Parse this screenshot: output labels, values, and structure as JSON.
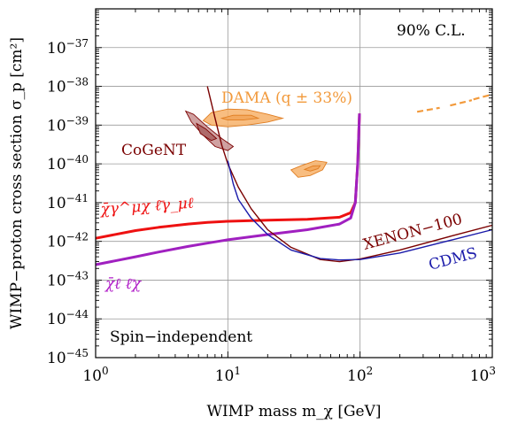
{
  "chart_data": {
    "type": "line",
    "xlabel": "WIMP mass m_χ [GeV]",
    "ylabel": "WIMP−proton cross section σ_p [cm²]",
    "x_scale": "log",
    "y_scale": "log",
    "xlim": [
      1,
      1000
    ],
    "ylim": [
      1e-45,
      1e-36
    ],
    "grid": true,
    "x_ticks": [
      {
        "value": 1,
        "base": "10",
        "exp": "0"
      },
      {
        "value": 10,
        "base": "10",
        "exp": "1"
      },
      {
        "value": 100,
        "base": "10",
        "exp": "2"
      },
      {
        "value": 1000,
        "base": "10",
        "exp": "3"
      }
    ],
    "y_ticks": [
      {
        "value": 1e-45,
        "base": "10",
        "exp": "−45"
      },
      {
        "value": 1e-44,
        "base": "10",
        "exp": "−44"
      },
      {
        "value": 1e-43,
        "base": "10",
        "exp": "−43"
      },
      {
        "value": 1e-42,
        "base": "10",
        "exp": "−42"
      },
      {
        "value": 1e-41,
        "base": "10",
        "exp": "−41"
      },
      {
        "value": 1e-40,
        "base": "10",
        "exp": "−40"
      },
      {
        "value": 1e-39,
        "base": "10",
        "exp": "−39"
      },
      {
        "value": 1e-38,
        "base": "10",
        "exp": "−38"
      },
      {
        "value": 1e-37,
        "base": "10",
        "exp": "−37"
      }
    ],
    "annotations": {
      "cl": "90% C.L.",
      "spin": "Spin−independent",
      "dama": "DAMA (q ± 33%)",
      "cogent": "CoGeNT",
      "xenon": "XENON−100",
      "cdms": "CDMS",
      "vector_op": "χ̄γ^μχ ℓ̄γ_μℓ",
      "scalar_op": "χ̄ℓ ℓ̄χ"
    },
    "series": [
      {
        "key": "vector",
        "color": "#ee1111",
        "x": [
          1,
          2,
          3,
          5,
          7,
          10,
          20,
          40,
          70,
          85,
          92,
          96,
          99
        ],
        "y": [
          1.2e-42,
          1.9e-42,
          2.3e-42,
          2.8e-42,
          3.1e-42,
          3.3e-42,
          3.5e-42,
          3.7e-42,
          4.2e-42,
          5.5e-42,
          1e-41,
          1e-40,
          2e-39
        ]
      },
      {
        "key": "scalar",
        "color": "#a020c0",
        "x": [
          1,
          2,
          3,
          5,
          7,
          10,
          20,
          40,
          70,
          85,
          92,
          96,
          99
        ],
        "y": [
          2.5e-43,
          4e-43,
          5.3e-43,
          7.4e-43,
          9e-43,
          1.1e-42,
          1.5e-42,
          2e-42,
          2.8e-42,
          4e-42,
          1e-41,
          1e-40,
          2e-39
        ]
      },
      {
        "key": "xenon100",
        "color": "#7a0000",
        "x": [
          7,
          8,
          9,
          10,
          12,
          15,
          20,
          30,
          50,
          70,
          100,
          200,
          500,
          1000
        ],
        "y": [
          1e-38,
          1.5e-39,
          3e-40,
          1e-40,
          2.5e-41,
          7e-42,
          2e-42,
          7e-43,
          3.4e-43,
          3e-43,
          3.5e-43,
          6e-43,
          1.4e-42,
          2.6e-42
        ]
      },
      {
        "key": "cdms",
        "color": "#1a1aaa",
        "x": [
          10,
          11,
          12,
          15,
          20,
          30,
          50,
          70,
          100,
          200,
          500,
          1000
        ],
        "y": [
          1.2e-40,
          3e-41,
          1.2e-41,
          4e-42,
          1.5e-42,
          6e-43,
          3.6e-43,
          3.3e-43,
          3.4e-43,
          5e-43,
          1.1e-42,
          2e-42
        ]
      }
    ],
    "regions": [
      {
        "key": "dama_low_outer",
        "fill": "#f7b26a",
        "stroke": "#e07d20",
        "points": [
          [
            6.5,
            1.3e-39
          ],
          [
            7.5,
            2.1e-39
          ],
          [
            10,
            2.6e-39
          ],
          [
            14,
            2.5e-39
          ],
          [
            20,
            1.9e-39
          ],
          [
            26,
            1.5e-39
          ],
          [
            20,
            1.2e-39
          ],
          [
            14,
            1e-39
          ],
          [
            10,
            9e-40
          ],
          [
            7.5,
            1e-39
          ]
        ]
      },
      {
        "key": "dama_low_inner",
        "fill": "#f2a458",
        "stroke": "#e07d20",
        "points": [
          [
            9,
            1.5e-39
          ],
          [
            11,
            1.8e-39
          ],
          [
            15,
            1.8e-39
          ],
          [
            17,
            1.5e-39
          ],
          [
            13,
            1.35e-39
          ],
          [
            10,
            1.35e-39
          ]
        ]
      },
      {
        "key": "dama_high_outer",
        "fill": "#f7b26a",
        "stroke": "#e07d20",
        "points": [
          [
            30,
            7e-41
          ],
          [
            36,
            9e-41
          ],
          [
            46,
            1.2e-40
          ],
          [
            56,
            1.1e-40
          ],
          [
            52,
            7e-41
          ],
          [
            42,
            5e-41
          ],
          [
            34,
            4.5e-41
          ]
        ]
      },
      {
        "key": "dama_high_inner",
        "fill": "#f2a458",
        "stroke": "#e07d20",
        "points": [
          [
            38,
            7.2e-41
          ],
          [
            44,
            8.8e-41
          ],
          [
            50,
            9e-41
          ],
          [
            48,
            7.5e-41
          ],
          [
            42,
            6.5e-41
          ]
        ]
      },
      {
        "key": "cogent_outer",
        "fill": "#c89090",
        "stroke": "#7a0000",
        "points": [
          [
            4.8,
            2.3e-39
          ],
          [
            5.5,
            1.9e-39
          ],
          [
            7,
            9e-40
          ],
          [
            9,
            4.5e-40
          ],
          [
            11,
            2.8e-40
          ],
          [
            10,
            2.2e-40
          ],
          [
            8,
            2.8e-40
          ],
          [
            6.5,
            5.5e-40
          ],
          [
            5.3,
            1.2e-39
          ]
        ]
      },
      {
        "key": "cogent_inner",
        "fill": "#a86060",
        "stroke": "#7a0000",
        "points": [
          [
            5.8,
            1.1e-39
          ],
          [
            6.8,
            8e-40
          ],
          [
            8.2,
            4.5e-40
          ],
          [
            7.5,
            4e-40
          ],
          [
            6.2,
            6e-40
          ]
        ]
      }
    ],
    "dashed_segments": [
      {
        "key": "dama_dash_1",
        "color": "#f29a3c",
        "x": [
          270,
          400
        ],
        "y": [
          2.2e-39,
          2.8e-39
        ]
      },
      {
        "key": "dama_dash_2",
        "color": "#f29a3c",
        "x": [
          480,
          700
        ],
        "y": [
          3.2e-39,
          4.4e-39
        ]
      },
      {
        "key": "dama_dash_3",
        "color": "#f29a3c",
        "x": [
          720,
          1000
        ],
        "y": [
          4.6e-39,
          6.2e-39
        ]
      }
    ]
  }
}
